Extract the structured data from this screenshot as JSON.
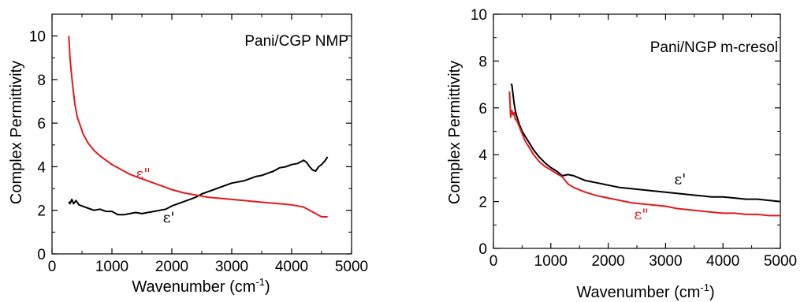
{
  "chart_data": [
    {
      "type": "line",
      "title": "",
      "annotation": "Pani/CGP NMP",
      "xlabel": "Wavenumber (cm",
      "xlabel_sup": "-1",
      "xlabel_close": ")",
      "ylabel": "Complex Permittivity",
      "xlim": [
        0,
        5000
      ],
      "ylim": [
        0,
        11
      ],
      "xticks": [
        0,
        1000,
        2000,
        3000,
        4000,
        5000
      ],
      "yticks": [
        0,
        2,
        4,
        6,
        8,
        10
      ],
      "grid": false,
      "series": [
        {
          "name": "ε'",
          "color": "#000000",
          "x": [
            280,
            300,
            330,
            360,
            400,
            450,
            500,
            600,
            700,
            800,
            900,
            1000,
            1100,
            1200,
            1300,
            1400,
            1500,
            1600,
            1700,
            1800,
            1900,
            2000,
            2100,
            2200,
            2300,
            2400,
            2500,
            2600,
            2700,
            2800,
            2900,
            3000,
            3100,
            3200,
            3300,
            3400,
            3500,
            3600,
            3700,
            3800,
            3900,
            4000,
            4100,
            4200,
            4250,
            4300,
            4350,
            4400,
            4450,
            4500,
            4550,
            4600
          ],
          "y": [
            2.4,
            2.3,
            2.5,
            2.3,
            2.45,
            2.25,
            2.2,
            2.1,
            2.0,
            2.05,
            1.95,
            1.95,
            1.8,
            1.8,
            1.85,
            1.9,
            1.85,
            1.9,
            1.95,
            2.0,
            2.05,
            2.2,
            2.3,
            2.4,
            2.5,
            2.6,
            2.75,
            2.85,
            2.95,
            3.05,
            3.15,
            3.25,
            3.3,
            3.35,
            3.45,
            3.55,
            3.6,
            3.7,
            3.8,
            3.95,
            4.0,
            4.1,
            4.15,
            4.3,
            4.2,
            4.0,
            3.85,
            3.8,
            4.0,
            4.1,
            4.25,
            4.45
          ]
        },
        {
          "name": "ε\"",
          "color": "#e31a1c",
          "x": [
            280,
            300,
            320,
            350,
            380,
            420,
            470,
            520,
            600,
            700,
            800,
            900,
            1000,
            1100,
            1200,
            1300,
            1400,
            1500,
            1600,
            1700,
            1800,
            1900,
            2000,
            2200,
            2400,
            2600,
            2800,
            3000,
            3200,
            3400,
            3600,
            3800,
            4000,
            4100,
            4200,
            4300,
            4400,
            4500,
            4600
          ],
          "y": [
            10.0,
            9.0,
            8.4,
            7.6,
            6.9,
            6.3,
            5.9,
            5.5,
            5.1,
            4.75,
            4.5,
            4.3,
            4.1,
            3.95,
            3.8,
            3.65,
            3.55,
            3.45,
            3.35,
            3.25,
            3.15,
            3.05,
            2.95,
            2.8,
            2.7,
            2.6,
            2.55,
            2.5,
            2.45,
            2.4,
            2.35,
            2.3,
            2.25,
            2.2,
            2.15,
            2.0,
            1.85,
            1.7,
            1.7
          ]
        }
      ],
      "labels": [
        {
          "text": "ε\"",
          "series": 1,
          "x": 1400,
          "y": 3.45
        },
        {
          "text": "ε'",
          "series": 0,
          "x": 1850,
          "y": 1.45
        }
      ]
    },
    {
      "type": "line",
      "title": "",
      "annotation": "Pani/NGP m-cresol",
      "xlabel": "Wavenumber (cm",
      "xlabel_sup": "-1",
      "xlabel_close": ")",
      "ylabel": "Complex Permittivity",
      "xlim": [
        0,
        5000
      ],
      "ylim": [
        0,
        10
      ],
      "xticks": [
        0,
        1000,
        2000,
        3000,
        4000,
        5000
      ],
      "yticks": [
        0,
        2,
        4,
        6,
        8,
        10
      ],
      "grid": false,
      "series": [
        {
          "name": "ε'",
          "color": "#000000",
          "x": [
            300,
            320,
            340,
            360,
            380,
            400,
            450,
            500,
            550,
            600,
            700,
            800,
            900,
            1000,
            1100,
            1200,
            1300,
            1400,
            1500,
            1600,
            1700,
            1800,
            2000,
            2200,
            2400,
            2600,
            2800,
            3000,
            3200,
            3400,
            3600,
            3800,
            4000,
            4200,
            4400,
            4600,
            4800,
            5000
          ],
          "y": [
            7.0,
            7.0,
            6.6,
            6.2,
            5.9,
            5.7,
            5.3,
            5.0,
            4.8,
            4.6,
            4.2,
            3.9,
            3.65,
            3.45,
            3.3,
            3.1,
            3.15,
            3.1,
            3.0,
            2.9,
            2.85,
            2.8,
            2.7,
            2.6,
            2.55,
            2.5,
            2.45,
            2.4,
            2.35,
            2.3,
            2.25,
            2.2,
            2.2,
            2.15,
            2.1,
            2.1,
            2.05,
            2.0
          ]
        },
        {
          "name": "ε\"",
          "color": "#e31a1c",
          "x": [
            280,
            300,
            320,
            340,
            360,
            380,
            400,
            450,
            500,
            550,
            600,
            700,
            800,
            900,
            1000,
            1100,
            1200,
            1300,
            1400,
            1500,
            1600,
            1800,
            2000,
            2200,
            2400,
            2600,
            2800,
            3000,
            3200,
            3400,
            3600,
            3800,
            4000,
            4200,
            4400,
            4600,
            4800,
            5000
          ],
          "y": [
            6.7,
            5.6,
            5.9,
            5.7,
            5.8,
            5.5,
            5.5,
            5.2,
            4.9,
            4.6,
            4.4,
            4.0,
            3.7,
            3.5,
            3.35,
            3.2,
            3.05,
            2.75,
            2.6,
            2.5,
            2.4,
            2.25,
            2.15,
            2.05,
            1.95,
            1.9,
            1.85,
            1.8,
            1.7,
            1.65,
            1.6,
            1.55,
            1.5,
            1.5,
            1.45,
            1.45,
            1.4,
            1.4
          ]
        }
      ],
      "labels": [
        {
          "text": "ε'",
          "series": 0,
          "x": 3150,
          "y": 2.75
        },
        {
          "text": "ε\"",
          "series": 1,
          "x": 2450,
          "y": 1.25
        }
      ]
    }
  ]
}
